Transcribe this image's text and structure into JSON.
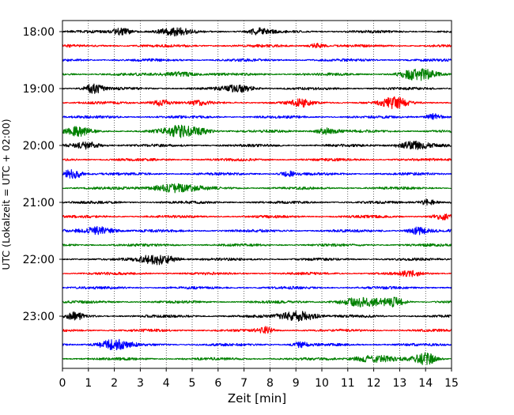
{
  "chart_data": {
    "type": "line",
    "xlabel": "Zeit  [min]",
    "ylabel": "UTC (Lokalzeit = UTC + 02:00)",
    "xlim": [
      0,
      15
    ],
    "x_ticks": [
      "0",
      "1",
      "2",
      "3",
      "4",
      "5",
      "6",
      "7",
      "8",
      "9",
      "10",
      "11",
      "12",
      "13",
      "14",
      "15"
    ],
    "y_tick_labels": [
      "18:00",
      "19:00",
      "20:00",
      "21:00",
      "22:00",
      "23:00"
    ],
    "grid": "vertical dotted at each minute",
    "legend": "none",
    "trace_interval_minutes": 15,
    "series_colors": [
      "#000000",
      "#ff0000",
      "#0000ff",
      "#008000"
    ],
    "series": [
      {
        "start": "18:00",
        "color": "#000000",
        "bursts": [
          [
            2.3,
            0.4,
            4
          ],
          [
            4.3,
            0.6,
            4
          ],
          [
            7.6,
            0.4,
            4
          ]
        ]
      },
      {
        "start": "18:15",
        "color": "#ff0000",
        "bursts": [
          [
            9.8,
            0.3,
            3
          ]
        ]
      },
      {
        "start": "18:30",
        "color": "#0000ff",
        "bursts": []
      },
      {
        "start": "18:45",
        "color": "#008000",
        "bursts": [
          [
            4.5,
            0.6,
            3
          ],
          [
            13.7,
            0.6,
            7
          ]
        ]
      },
      {
        "start": "19:00",
        "color": "#000000",
        "bursts": [
          [
            1.2,
            0.35,
            6
          ],
          [
            6.8,
            0.6,
            4
          ]
        ]
      },
      {
        "start": "19:15",
        "color": "#ff0000",
        "bursts": [
          [
            3.8,
            0.4,
            4
          ],
          [
            5.3,
            0.3,
            3
          ],
          [
            9.2,
            0.4,
            4
          ],
          [
            12.8,
            0.5,
            6
          ]
        ]
      },
      {
        "start": "19:30",
        "color": "#0000ff",
        "bursts": [
          [
            14.3,
            0.3,
            4
          ]
        ]
      },
      {
        "start": "19:45",
        "color": "#008000",
        "bursts": [
          [
            0.6,
            0.5,
            5
          ],
          [
            4.7,
            0.8,
            7
          ],
          [
            10.2,
            0.4,
            4
          ]
        ]
      },
      {
        "start": "20:00",
        "color": "#000000",
        "bursts": [
          [
            1.0,
            0.5,
            4
          ],
          [
            13.5,
            0.6,
            5
          ]
        ]
      },
      {
        "start": "20:15",
        "color": "#ff0000",
        "bursts": []
      },
      {
        "start": "20:30",
        "color": "#0000ff",
        "bursts": [
          [
            0.4,
            0.35,
            7
          ],
          [
            8.7,
            0.3,
            3
          ]
        ]
      },
      {
        "start": "20:45",
        "color": "#008000",
        "bursts": [
          [
            4.3,
            0.9,
            5
          ]
        ]
      },
      {
        "start": "21:00",
        "color": "#000000",
        "bursts": [
          [
            14.1,
            0.3,
            4
          ]
        ]
      },
      {
        "start": "21:15",
        "color": "#ff0000",
        "bursts": [
          [
            14.6,
            0.3,
            4
          ]
        ]
      },
      {
        "start": "21:30",
        "color": "#0000ff",
        "bursts": [
          [
            1.4,
            0.6,
            5
          ],
          [
            13.7,
            0.4,
            4
          ]
        ]
      },
      {
        "start": "21:45",
        "color": "#008000",
        "bursts": []
      },
      {
        "start": "22:00",
        "color": "#000000",
        "bursts": [
          [
            3.7,
            0.7,
            6
          ]
        ]
      },
      {
        "start": "22:15",
        "color": "#ff0000",
        "bursts": [
          [
            13.4,
            0.4,
            3
          ]
        ]
      },
      {
        "start": "22:30",
        "color": "#0000ff",
        "bursts": []
      },
      {
        "start": "22:45",
        "color": "#008000",
        "bursts": [
          [
            11.5,
            0.8,
            5
          ],
          [
            12.8,
            0.4,
            5
          ]
        ]
      },
      {
        "start": "23:00",
        "color": "#000000",
        "bursts": [
          [
            0.5,
            0.3,
            4
          ],
          [
            9.1,
            0.7,
            6
          ]
        ]
      },
      {
        "start": "23:15",
        "color": "#ff0000",
        "bursts": [
          [
            7.8,
            0.3,
            4
          ]
        ]
      },
      {
        "start": "23:30",
        "color": "#0000ff",
        "bursts": [
          [
            2.0,
            0.6,
            6
          ],
          [
            9.2,
            0.3,
            3
          ]
        ]
      },
      {
        "start": "23:45",
        "color": "#008000",
        "bursts": [
          [
            12.0,
            0.8,
            4
          ],
          [
            14.0,
            0.4,
            7
          ]
        ]
      }
    ]
  }
}
